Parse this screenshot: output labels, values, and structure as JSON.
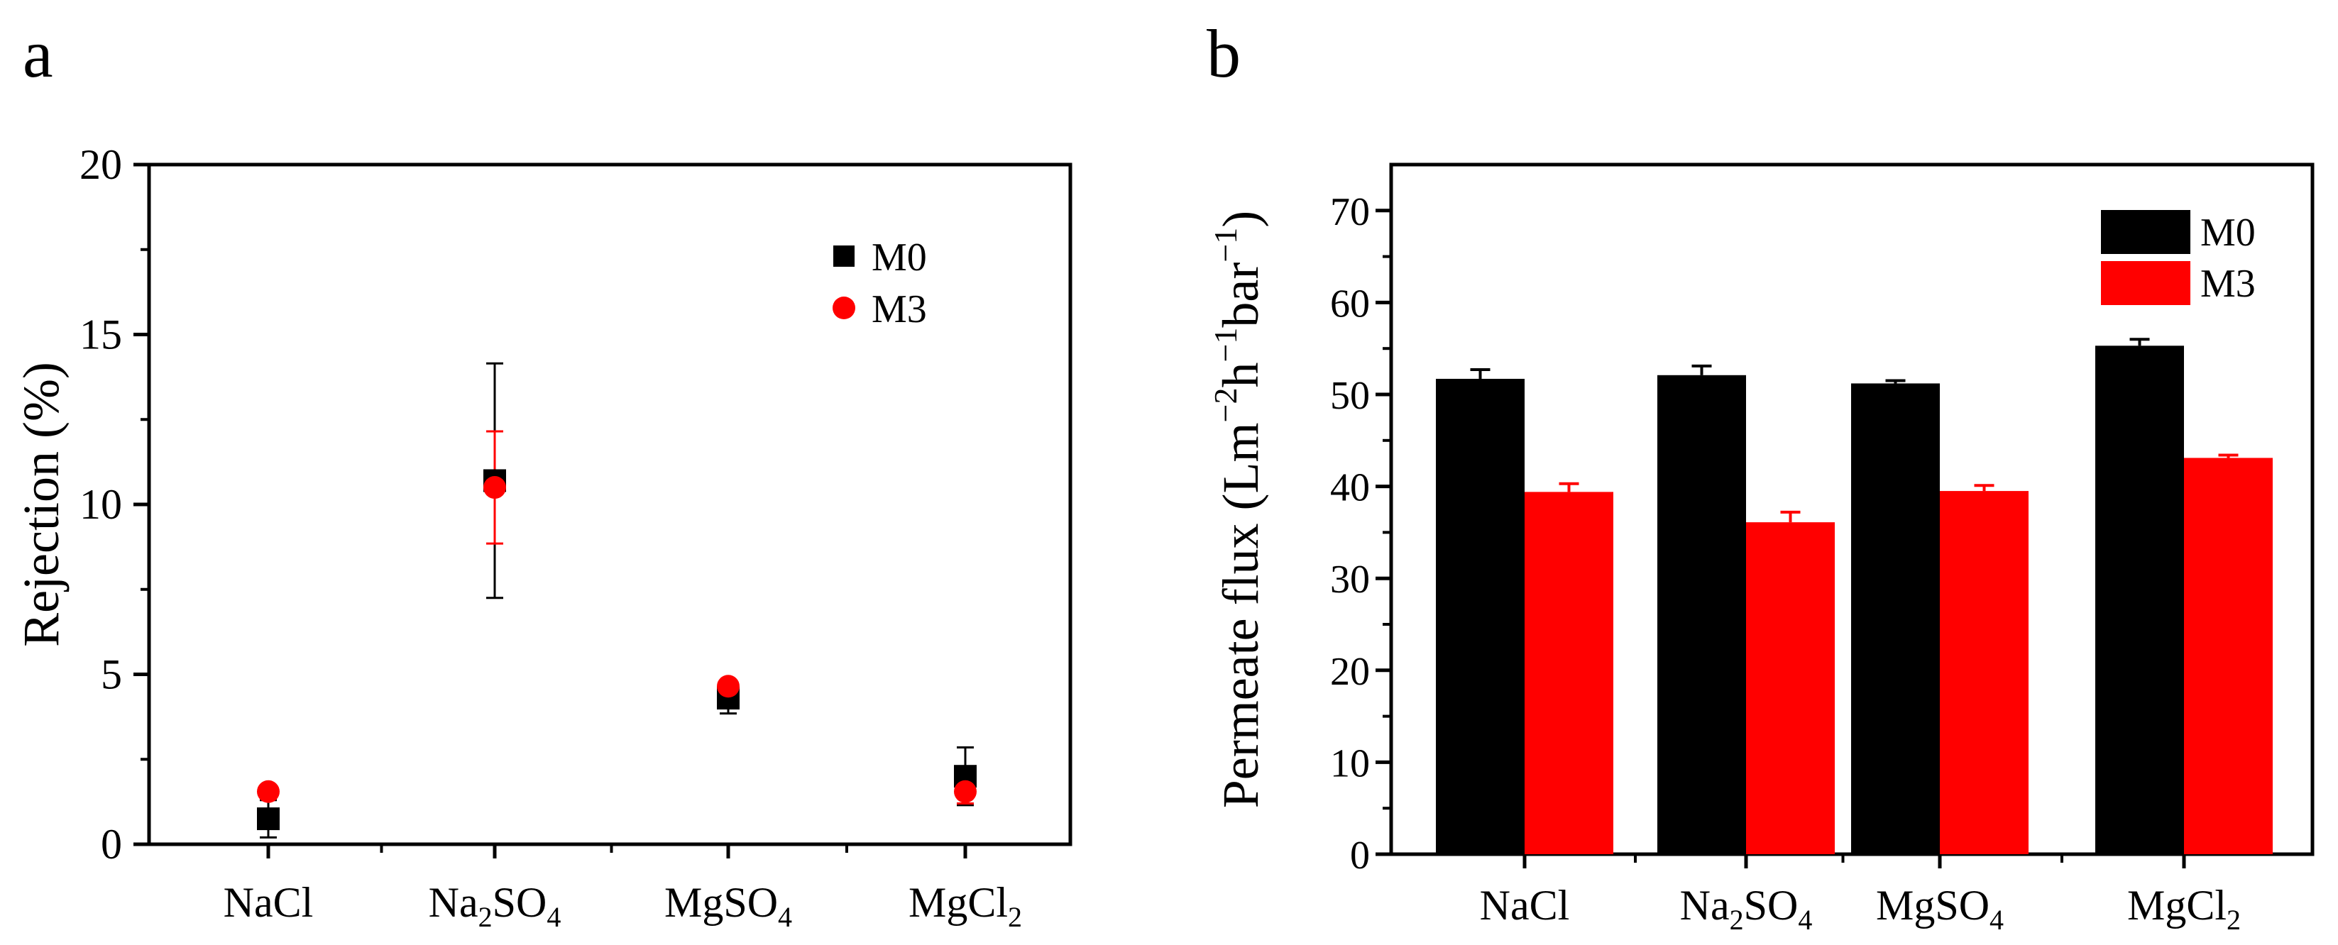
{
  "panels": {
    "a": {
      "label": "a"
    },
    "b": {
      "label": "b"
    }
  },
  "colors": {
    "m0": "#000000",
    "m3": "#ff0000",
    "axis": "#000000"
  },
  "chart_data": [
    {
      "id": "a",
      "type": "scatter",
      "categories": [
        "NaCl",
        "Na2SO4",
        "MgSO4",
        "MgCl2"
      ],
      "category_labels": [
        {
          "base": "NaCl",
          "sub": ""
        },
        {
          "base": "Na",
          "sub": "2",
          "rest": "SO",
          "sub2": "4"
        },
        {
          "base": "MgSO",
          "sub": "4"
        },
        {
          "base": "MgCl",
          "sub": "2"
        }
      ],
      "series": [
        {
          "name": "M0",
          "values": [
            0.75,
            10.7,
            4.3,
            2.0
          ],
          "errors": [
            0.55,
            3.45,
            0.45,
            0.85
          ],
          "marker": "square",
          "color": "#000000"
        },
        {
          "name": "M3",
          "values": [
            1.55,
            10.5,
            4.65,
            1.55
          ],
          "errors": [
            0.0,
            1.65,
            0.15,
            0.35
          ],
          "marker": "circle",
          "color": "#ff0000"
        }
      ],
      "ylabel": "Rejection (%)",
      "xlabel": "",
      "ylim": [
        0,
        20
      ],
      "yticks": [
        0,
        5,
        10,
        15,
        20
      ],
      "grid": false,
      "legend": "top-right"
    },
    {
      "id": "b",
      "type": "bar",
      "categories": [
        "NaCl",
        "Na2SO4",
        "MgSO4",
        "MgCl2"
      ],
      "category_labels": [
        {
          "base": "NaCl",
          "sub": ""
        },
        {
          "base": "Na",
          "sub": "2",
          "rest": "SO",
          "sub2": "4"
        },
        {
          "base": "MgSO",
          "sub": "4"
        },
        {
          "base": "MgCl",
          "sub": "2"
        }
      ],
      "series": [
        {
          "name": "M0",
          "values": [
            51.7,
            52.1,
            51.2,
            55.3
          ],
          "errors": [
            1.0,
            1.0,
            0.3,
            0.7
          ],
          "color": "#000000"
        },
        {
          "name": "M3",
          "values": [
            39.4,
            36.1,
            39.5,
            43.1
          ],
          "errors": [
            0.9,
            1.1,
            0.6,
            0.3
          ],
          "color": "#ff0000"
        }
      ],
      "ylabel": {
        "prefix": "Permeate flux (Lm",
        "sup1": "−2",
        "mid1": "h",
        "sup2": "−1",
        "mid2": "bar",
        "sup3": "−1",
        "suffix": ")"
      },
      "xlabel": "",
      "ylim": [
        0,
        75
      ],
      "yticks": [
        0,
        10,
        20,
        30,
        40,
        50,
        60,
        70
      ],
      "grid": false,
      "legend": "top-right"
    }
  ]
}
